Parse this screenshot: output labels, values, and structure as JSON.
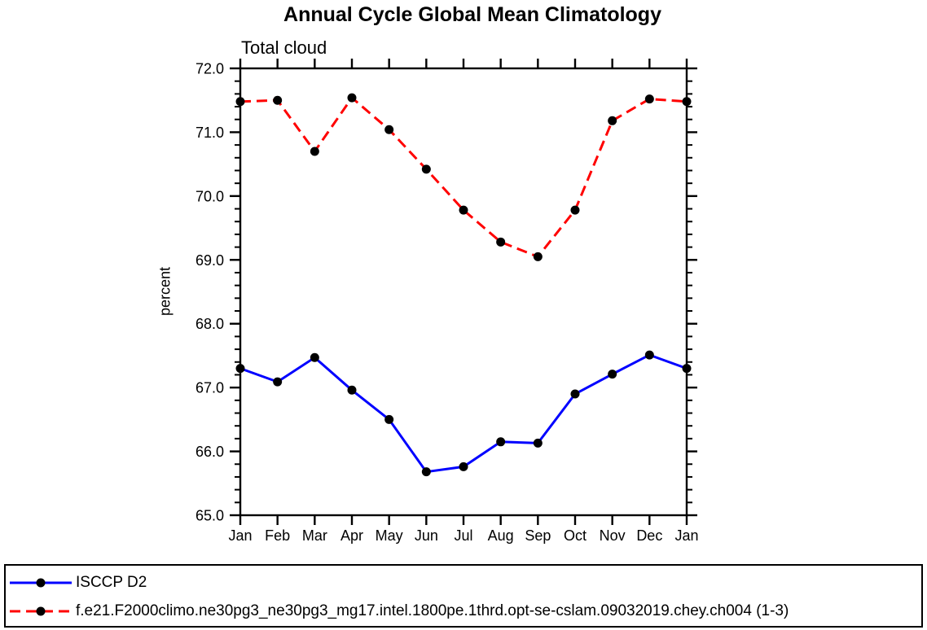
{
  "title": "Annual Cycle Global Mean Climatology",
  "chart_data": {
    "type": "line",
    "subtitle": "Total cloud",
    "ylabel": "percent",
    "xlabel": "",
    "categories": [
      "Jan",
      "Feb",
      "Mar",
      "Apr",
      "May",
      "Jun",
      "Jul",
      "Aug",
      "Sep",
      "Oct",
      "Nov",
      "Dec",
      "Jan"
    ],
    "series": [
      {
        "name": "ISCCP D2",
        "color": "#0000ff",
        "line_style": "solid",
        "dash": "",
        "marker": "filled-circle",
        "marker_color": "#000000",
        "values": [
          67.3,
          67.09,
          67.47,
          66.96,
          66.5,
          65.68,
          65.76,
          66.15,
          66.13,
          66.9,
          67.21,
          67.51,
          67.3
        ]
      },
      {
        "name": "f.e21.F2000climo.ne30pg3_ne30pg3_mg17.intel.1800pe.1thrd.opt-se-cslam.09032019.chey.ch004 (1-3)",
        "color": "#ff0000",
        "line_style": "dashed",
        "dash": "13,7",
        "marker": "filled-circle",
        "marker_color": "#000000",
        "values": [
          71.48,
          71.5,
          70.7,
          71.54,
          71.04,
          70.42,
          69.78,
          69.28,
          69.05,
          69.78,
          71.18,
          71.52,
          71.48
        ]
      }
    ],
    "ylim": [
      65.0,
      72.0
    ],
    "ytick_interval": 1.0,
    "yminor_interval": 0.2,
    "ytick_labels": [
      "65.0",
      "66.0",
      "67.0",
      "68.0",
      "69.0",
      "70.0",
      "71.0",
      "72.0"
    ],
    "grid": false,
    "frame": "box-with-outward-ticks",
    "legend_position": "bottom-box",
    "axis_color": "#000000"
  }
}
